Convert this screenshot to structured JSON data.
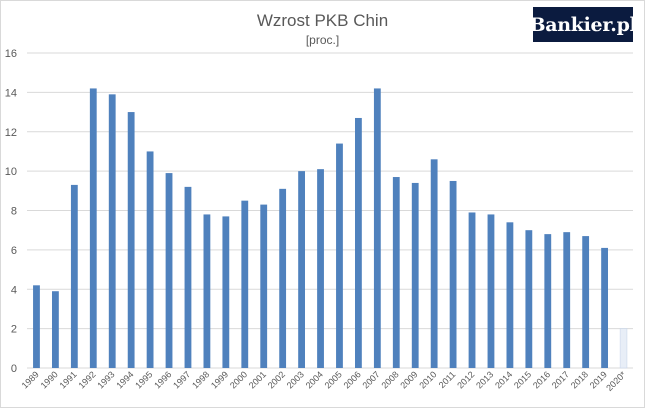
{
  "chart_data": {
    "type": "bar",
    "title": "Wzrost PKB Chin",
    "subtitle": "[proc.]",
    "xlabel": "",
    "ylabel": "",
    "ylim": [
      0,
      16
    ],
    "yticks": [
      0,
      2,
      4,
      6,
      8,
      10,
      12,
      14,
      16
    ],
    "grid": true,
    "categories": [
      "1989",
      "1990",
      "1991",
      "1992",
      "1993",
      "1994",
      "1995",
      "1996",
      "1997",
      "1998",
      "1999",
      "2000",
      "2001",
      "2002",
      "2003",
      "2004",
      "2005",
      "2006",
      "2007",
      "2008",
      "2009",
      "2010",
      "2011",
      "2012",
      "2013",
      "2014",
      "2015",
      "2016",
      "2017",
      "2018",
      "2019",
      "2020*"
    ],
    "values": [
      4.2,
      3.9,
      9.3,
      14.2,
      13.9,
      13.0,
      11.0,
      9.9,
      9.2,
      7.8,
      7.7,
      8.5,
      8.3,
      9.1,
      10.0,
      10.1,
      11.4,
      12.7,
      14.2,
      9.7,
      9.4,
      10.6,
      9.5,
      7.9,
      7.8,
      7.4,
      7.0,
      6.8,
      6.9,
      6.7,
      6.1,
      2.0
    ],
    "colors": {
      "bar": "#4f81bd",
      "forecast": "#e8eef7",
      "forecast_edge": "#c9d6ea",
      "grid": "#d9d9d9",
      "text": "#595959"
    }
  },
  "logo": {
    "text": "Bankier.pl"
  }
}
